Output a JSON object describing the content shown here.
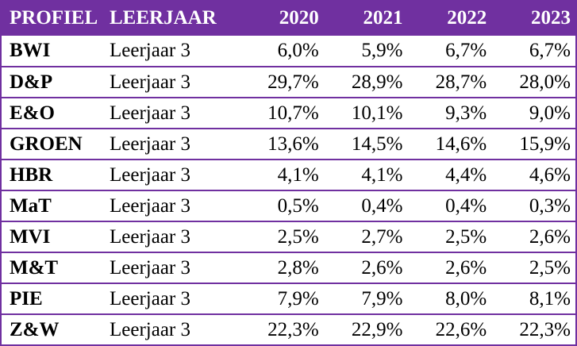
{
  "header": {
    "profiel": "PROFIEL",
    "leerjaar": "LEERJAAR",
    "years": [
      "2020",
      "2021",
      "2022",
      "2023"
    ]
  },
  "rows": [
    {
      "profiel": "BWI",
      "leerjaar": "Leerjaar 3",
      "values": [
        "6,0%",
        "5,9%",
        "6,7%",
        "6,7%"
      ]
    },
    {
      "profiel": "D&P",
      "leerjaar": "Leerjaar 3",
      "values": [
        "29,7%",
        "28,9%",
        "28,7%",
        "28,0%"
      ]
    },
    {
      "profiel": "E&O",
      "leerjaar": "Leerjaar 3",
      "values": [
        "10,7%",
        "10,1%",
        "9,3%",
        "9,0%"
      ]
    },
    {
      "profiel": "GROEN",
      "leerjaar": "Leerjaar 3",
      "values": [
        "13,6%",
        "14,5%",
        "14,6%",
        "15,9%"
      ]
    },
    {
      "profiel": "HBR",
      "leerjaar": "Leerjaar 3",
      "values": [
        "4,1%",
        "4,1%",
        "4,4%",
        "4,6%"
      ]
    },
    {
      "profiel": "MaT",
      "leerjaar": "Leerjaar 3",
      "values": [
        "0,5%",
        "0,4%",
        "0,4%",
        "0,3%"
      ]
    },
    {
      "profiel": "MVI",
      "leerjaar": "Leerjaar 3",
      "values": [
        "2,5%",
        "2,7%",
        "2,5%",
        "2,6%"
      ]
    },
    {
      "profiel": "M&T",
      "leerjaar": "Leerjaar 3",
      "values": [
        "2,8%",
        "2,6%",
        "2,6%",
        "2,5%"
      ]
    },
    {
      "profiel": "PIE",
      "leerjaar": "Leerjaar 3",
      "values": [
        "7,9%",
        "7,9%",
        "8,0%",
        "8,1%"
      ]
    },
    {
      "profiel": "Z&W",
      "leerjaar": "Leerjaar 3",
      "values": [
        "22,3%",
        "22,9%",
        "22,6%",
        "22,3%"
      ]
    }
  ],
  "colors": {
    "header_bg": "#7030a0",
    "header_text": "#ffffff",
    "row_border": "#7030a0"
  }
}
